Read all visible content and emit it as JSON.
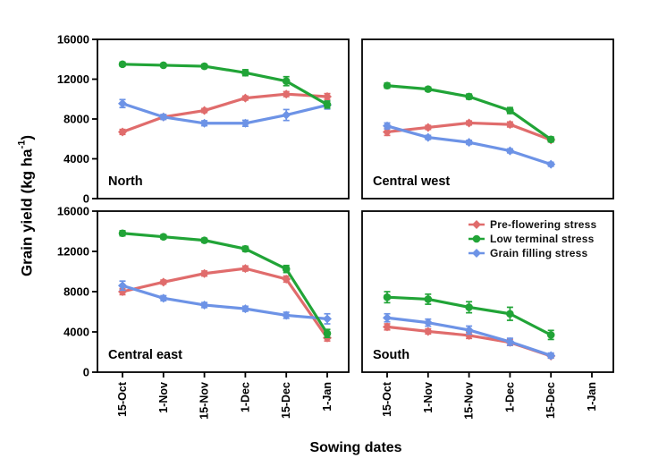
{
  "chart_data": {
    "type": "line",
    "xlabel": "Sowing dates",
    "ylabel": {
      "main": "Grain yield (kg ha",
      "sup": "-1",
      "end": ")"
    },
    "categories": [
      "15-Oct",
      "1-Nov",
      "15-Nov",
      "1-Dec",
      "15-Dec",
      "1-Jan"
    ],
    "yticks": [
      0,
      4000,
      8000,
      12000,
      16000
    ],
    "ylim": [
      0,
      16000
    ],
    "grid": false,
    "legend_position": "inside-south-panel-top-right",
    "legend": [
      {
        "key": "pre",
        "label": "Pre-flowering stress",
        "color": "#e06c6c",
        "marker": "diamond"
      },
      {
        "key": "low",
        "label": "Low terminal stress",
        "color": "#21a437",
        "marker": "circle"
      },
      {
        "key": "grain",
        "label": "Grain filling stress",
        "color": "#6d93e6",
        "marker": "diamond"
      }
    ],
    "panels": [
      {
        "title": "North",
        "series": [
          {
            "key": "pre",
            "name": "Pre-flowering stress",
            "values": [
              6700,
              8200,
              8850,
              10100,
              10500,
              10250
            ],
            "errors": [
              250,
              200,
              200,
              200,
              250,
              300
            ]
          },
          {
            "key": "grain",
            "name": "Grain filling stress",
            "values": [
              9550,
              8200,
              7570,
              7570,
              8400,
              9400
            ],
            "errors": [
              400,
              250,
              250,
              300,
              550,
              400
            ]
          },
          {
            "key": "low",
            "name": "Low terminal stress",
            "values": [
              13500,
              13400,
              13300,
              12650,
              11800,
              9450
            ],
            "errors": [
              200,
              150,
              200,
              300,
              450,
              350
            ]
          }
        ]
      },
      {
        "title": "Central west",
        "series": [
          {
            "key": "pre",
            "name": "Pre-flowering stress",
            "values": [
              6700,
              7150,
              7600,
              7450,
              5900
            ],
            "errors": [
              350,
              200,
              200,
              250,
              200
            ]
          },
          {
            "key": "grain",
            "name": "Grain filling stress",
            "values": [
              7300,
              6150,
              5650,
              4800,
              3450
            ],
            "errors": [
              300,
              200,
              200,
              200,
              200
            ]
          },
          {
            "key": "low",
            "name": "Low terminal stress",
            "values": [
              11350,
              11000,
              10250,
              8850,
              5950
            ],
            "errors": [
              250,
              200,
              250,
              300,
              250
            ]
          }
        ]
      },
      {
        "title": "Central east",
        "series": [
          {
            "key": "pre",
            "name": "Pre-flowering stress",
            "values": [
              8000,
              8950,
              9800,
              10300,
              9250,
              3400
            ],
            "errors": [
              300,
              200,
              250,
              250,
              300,
              300
            ]
          },
          {
            "key": "grain",
            "name": "Grain filling stress",
            "values": [
              8600,
              7350,
              6670,
              6300,
              5650,
              5300
            ],
            "errors": [
              450,
              250,
              250,
              250,
              300,
              500
            ]
          },
          {
            "key": "low",
            "name": "Low terminal stress",
            "values": [
              13800,
              13450,
              13100,
              12250,
              10250,
              3850
            ],
            "errors": [
              250,
              200,
              200,
              250,
              350,
              400
            ]
          }
        ]
      },
      {
        "title": "South",
        "series": [
          {
            "key": "pre",
            "name": "Pre-flowering stress",
            "values": [
              4500,
              4050,
              3650,
              2960,
              1600
            ],
            "errors": [
              300,
              250,
              300,
              300,
              200
            ]
          },
          {
            "key": "grain",
            "name": "Grain filling stress",
            "values": [
              5400,
              4920,
              4180,
              3020,
              1650
            ],
            "errors": [
              400,
              350,
              400,
              350,
              250
            ]
          },
          {
            "key": "low",
            "name": "Low terminal stress",
            "values": [
              7450,
              7250,
              6450,
              5800,
              3700
            ],
            "errors": [
              550,
              500,
              550,
              650,
              450
            ]
          }
        ]
      }
    ]
  }
}
